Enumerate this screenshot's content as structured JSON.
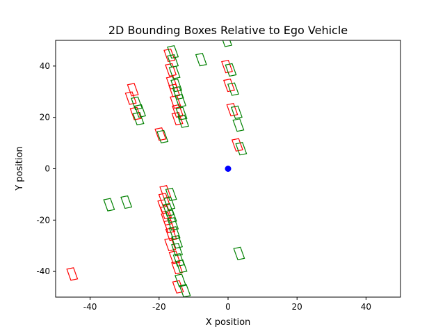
{
  "chart_data": {
    "type": "scatter",
    "title": "2D Bounding Boxes Relative to Ego Vehicle",
    "xlabel": "X position",
    "ylabel": "Y position",
    "xlim": [
      -50,
      50
    ],
    "ylim": [
      -50,
      50
    ],
    "xticks": [
      -40,
      -20,
      0,
      20,
      40
    ],
    "yticks": [
      -40,
      -20,
      0,
      20,
      40
    ],
    "grid": false,
    "legend": "none",
    "ego": {
      "x": 0,
      "y": 0,
      "color": "#0000ff"
    },
    "box_size": {
      "width": 2.0,
      "length": 4.5
    },
    "series": [
      {
        "color": "#ff0000",
        "boxes": [
          {
            "x": -17.0,
            "y": 44.2,
            "yaw": 15
          },
          {
            "x": -16.6,
            "y": 38.5,
            "yaw": 15
          },
          {
            "x": -16.3,
            "y": 33.5,
            "yaw": 15
          },
          {
            "x": -15.6,
            "y": 30.5,
            "yaw": 15
          },
          {
            "x": -15.2,
            "y": 26.0,
            "yaw": 15
          },
          {
            "x": -14.6,
            "y": 22.5,
            "yaw": 15
          },
          {
            "x": -14.7,
            "y": 19.5,
            "yaw": 15
          },
          {
            "x": -27.6,
            "y": 30.8,
            "yaw": 15
          },
          {
            "x": -28.2,
            "y": 27.5,
            "yaw": 15
          },
          {
            "x": -26.8,
            "y": 21.5,
            "yaw": 15
          },
          {
            "x": -19.6,
            "y": 13.5,
            "yaw": 15
          },
          {
            "x": -0.3,
            "y": 39.8,
            "yaw": 15
          },
          {
            "x": 0.3,
            "y": 32.5,
            "yaw": 15
          },
          {
            "x": 1.2,
            "y": 23.0,
            "yaw": 15
          },
          {
            "x": 2.7,
            "y": 9.3,
            "yaw": 15
          },
          {
            "x": -18.2,
            "y": -9.0,
            "yaw": 15
          },
          {
            "x": -18.5,
            "y": -12.0,
            "yaw": 15
          },
          {
            "x": -18.8,
            "y": -14.5,
            "yaw": 15
          },
          {
            "x": -18.0,
            "y": -17.0,
            "yaw": 15
          },
          {
            "x": -17.8,
            "y": -19.5,
            "yaw": 15
          },
          {
            "x": -17.0,
            "y": -22.5,
            "yaw": 15
          },
          {
            "x": -16.5,
            "y": -25.5,
            "yaw": 15
          },
          {
            "x": -16.8,
            "y": -29.5,
            "yaw": 15
          },
          {
            "x": -15.5,
            "y": -34.5,
            "yaw": 15
          },
          {
            "x": -14.8,
            "y": -38.5,
            "yaw": 15
          },
          {
            "x": -14.5,
            "y": -46.0,
            "yaw": 15
          },
          {
            "x": -45.2,
            "y": -41.0,
            "yaw": 15
          }
        ]
      },
      {
        "color": "#008000",
        "boxes": [
          {
            "x": -16.0,
            "y": 45.5,
            "yaw": 15
          },
          {
            "x": -16.0,
            "y": 42.0,
            "yaw": 15
          },
          {
            "x": -15.5,
            "y": 37.5,
            "yaw": 15
          },
          {
            "x": -15.0,
            "y": 32.5,
            "yaw": 15
          },
          {
            "x": -14.5,
            "y": 29.5,
            "yaw": 15
          },
          {
            "x": -13.8,
            "y": 26.5,
            "yaw": 15
          },
          {
            "x": -13.5,
            "y": 21.5,
            "yaw": 15
          },
          {
            "x": -13.0,
            "y": 18.5,
            "yaw": 15
          },
          {
            "x": -26.5,
            "y": 25.5,
            "yaw": 15
          },
          {
            "x": -25.5,
            "y": 22.5,
            "yaw": 15
          },
          {
            "x": -26.0,
            "y": 19.5,
            "yaw": 15
          },
          {
            "x": -19.0,
            "y": 12.5,
            "yaw": 15
          },
          {
            "x": -7.8,
            "y": 42.5,
            "yaw": 15
          },
          {
            "x": -0.5,
            "y": 50.0,
            "yaw": 15
          },
          {
            "x": 0.8,
            "y": 38.5,
            "yaw": 15
          },
          {
            "x": 1.5,
            "y": 31.0,
            "yaw": 15
          },
          {
            "x": 2.5,
            "y": 22.0,
            "yaw": 15
          },
          {
            "x": 3.0,
            "y": 17.0,
            "yaw": 15
          },
          {
            "x": 3.8,
            "y": 7.8,
            "yaw": 15
          },
          {
            "x": -16.5,
            "y": -10.0,
            "yaw": 15
          },
          {
            "x": -17.0,
            "y": -13.5,
            "yaw": 15
          },
          {
            "x": -17.3,
            "y": -16.0,
            "yaw": 15
          },
          {
            "x": -16.5,
            "y": -18.5,
            "yaw": 15
          },
          {
            "x": -16.0,
            "y": -21.5,
            "yaw": 15
          },
          {
            "x": -15.5,
            "y": -25.0,
            "yaw": 15
          },
          {
            "x": -14.8,
            "y": -28.5,
            "yaw": 15
          },
          {
            "x": -14.8,
            "y": -31.5,
            "yaw": 15
          },
          {
            "x": -14.3,
            "y": -35.5,
            "yaw": 15
          },
          {
            "x": -13.5,
            "y": -38.0,
            "yaw": 15
          },
          {
            "x": -13.8,
            "y": -43.5,
            "yaw": 15
          },
          {
            "x": -12.5,
            "y": -47.5,
            "yaw": 15
          },
          {
            "x": -34.5,
            "y": -14.0,
            "yaw": 15
          },
          {
            "x": -29.5,
            "y": -13.0,
            "yaw": 15
          },
          {
            "x": 3.2,
            "y": -33.0,
            "yaw": 15
          }
        ]
      }
    ]
  }
}
